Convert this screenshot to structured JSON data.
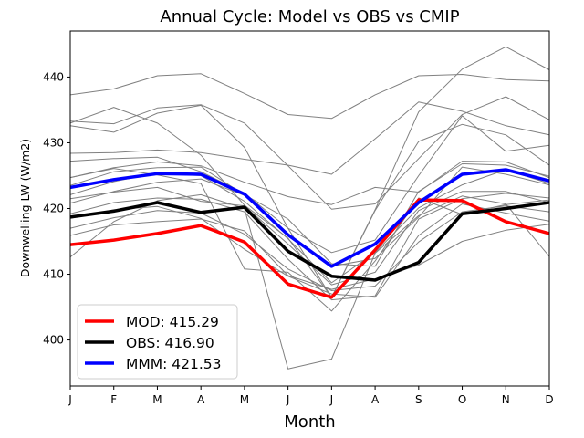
{
  "chart_data": {
    "type": "line",
    "title": "Annual Cycle: Model vs OBS vs CMIP",
    "xlabel": "Month",
    "ylabel": "Downwelling LW (W/m2)",
    "categories": [
      "J",
      "F",
      "M",
      "A",
      "M",
      "J",
      "J",
      "A",
      "S",
      "O",
      "N",
      "D"
    ],
    "ylim": [
      393,
      447
    ],
    "yticks": [
      400,
      410,
      420,
      430,
      440
    ],
    "legend_position": "lower-left",
    "background_series": [
      {
        "name": "cmip-1",
        "values": [
          437.3,
          438.2,
          440.2,
          440.5,
          437.5,
          434.3,
          433.7,
          437.3,
          440.2,
          440.4,
          439.6,
          439.4
        ]
      },
      {
        "name": "cmip-2",
        "values": [
          433.3,
          432.9,
          435.3,
          435.8,
          433.0,
          426.5,
          419.9,
          420.7,
          427.6,
          434.3,
          437.0,
          433.5
        ]
      },
      {
        "name": "cmip-3",
        "values": [
          433.0,
          435.4,
          433.0,
          428.1,
          420.5,
          415.5,
          406.5,
          419.8,
          434.7,
          441.2,
          444.6,
          441.1
        ]
      },
      {
        "name": "cmip-4",
        "values": [
          432.6,
          431.6,
          434.5,
          435.7,
          429.3,
          417.0,
          406.5,
          419.7,
          430.2,
          432.8,
          431.2,
          426.6
        ]
      },
      {
        "name": "cmip-5",
        "values": [
          428.4,
          428.5,
          428.9,
          428.5,
          427.5,
          426.6,
          425.2,
          430.6,
          436.2,
          434.8,
          432.6,
          431.2
        ]
      },
      {
        "name": "cmip-6",
        "values": [
          427.2,
          427.6,
          427.8,
          425.6,
          422.3,
          417.0,
          413.3,
          415.2,
          425.0,
          434.1,
          428.7,
          429.6
        ]
      },
      {
        "name": "cmip-7",
        "values": [
          424.7,
          426.2,
          427.1,
          426.5,
          424.0,
          421.8,
          420.6,
          423.2,
          422.5,
          427.2,
          427.1,
          424.7
        ]
      },
      {
        "name": "cmip-8",
        "values": [
          423.5,
          425.6,
          426.2,
          426.3,
          422.1,
          418.4,
          411.6,
          411.2,
          422.6,
          426.8,
          426.6,
          424.9
        ]
      },
      {
        "name": "cmip-9",
        "values": [
          422.1,
          424.1,
          425.4,
          425.0,
          421.1,
          415.4,
          408.7,
          413.3,
          420.1,
          423.6,
          425.9,
          423.8
        ]
      },
      {
        "name": "cmip-10",
        "values": [
          421.5,
          422.5,
          423.2,
          421.1,
          420.4,
          414.6,
          408.4,
          410.3,
          419.7,
          422.6,
          422.6,
          420.9
        ]
      },
      {
        "name": "cmip-11",
        "values": [
          420.8,
          422.6,
          424.0,
          424.5,
          422.0,
          416.0,
          411.2,
          412.4,
          418.7,
          426.3,
          425.2,
          423.6
        ]
      },
      {
        "name": "cmip-12",
        "values": [
          419.2,
          420.9,
          421.6,
          421.4,
          419.5,
          412.3,
          406.1,
          406.7,
          418.4,
          421.5,
          422.3,
          421.6
        ]
      },
      {
        "name": "cmip-13",
        "values": [
          418.5,
          419.8,
          420.3,
          418.5,
          413.8,
          409.7,
          407.0,
          406.5,
          415.9,
          420.7,
          419.3,
          418.1
        ]
      },
      {
        "name": "cmip-14",
        "values": [
          417.0,
          418.6,
          419.7,
          419.3,
          416.1,
          410.8,
          407.5,
          408.2,
          414.9,
          419.5,
          420.4,
          419.5
        ]
      },
      {
        "name": "cmip-15",
        "values": [
          415.9,
          417.5,
          418.0,
          418.4,
          416.6,
          409.8,
          407.7,
          409.3,
          411.4,
          415.0,
          416.7,
          417.6
        ]
      },
      {
        "name": "cmip-16",
        "values": [
          412.6,
          418.0,
          421.2,
          422.1,
          420.0,
          395.6,
          397.1,
          413.2,
          418.9,
          421.9,
          420.7,
          412.7
        ]
      },
      {
        "name": "cmip-17",
        "values": [
          424.7,
          426.1,
          425.1,
          423.8,
          410.8,
          410.3,
          404.4,
          412.0,
          421.6,
          419.1,
          420.6,
          421.3
        ]
      }
    ],
    "series": [
      {
        "name": "MOD",
        "color": "#ff0000",
        "values": [
          414.5,
          415.2,
          416.2,
          417.4,
          414.9,
          408.5,
          406.5,
          413.7,
          421.3,
          421.2,
          418.0,
          416.2
        ]
      },
      {
        "name": "OBS",
        "color": "#000000",
        "values": [
          418.7,
          419.6,
          420.9,
          419.4,
          420.2,
          413.5,
          409.7,
          409.1,
          411.8,
          419.2,
          420.0,
          420.9
        ]
      },
      {
        "name": "MMM",
        "color": "#0000ff",
        "values": [
          423.2,
          424.4,
          425.3,
          425.2,
          422.2,
          416.0,
          411.2,
          414.6,
          420.9,
          425.2,
          425.9,
          424.2
        ]
      }
    ],
    "legend": [
      {
        "label": "MOD: 415.29",
        "color": "#ff0000"
      },
      {
        "label": "OBS: 416.90",
        "color": "#000000"
      },
      {
        "label": "MMM: 421.53",
        "color": "#0000ff"
      }
    ],
    "background_color": "#808080"
  }
}
